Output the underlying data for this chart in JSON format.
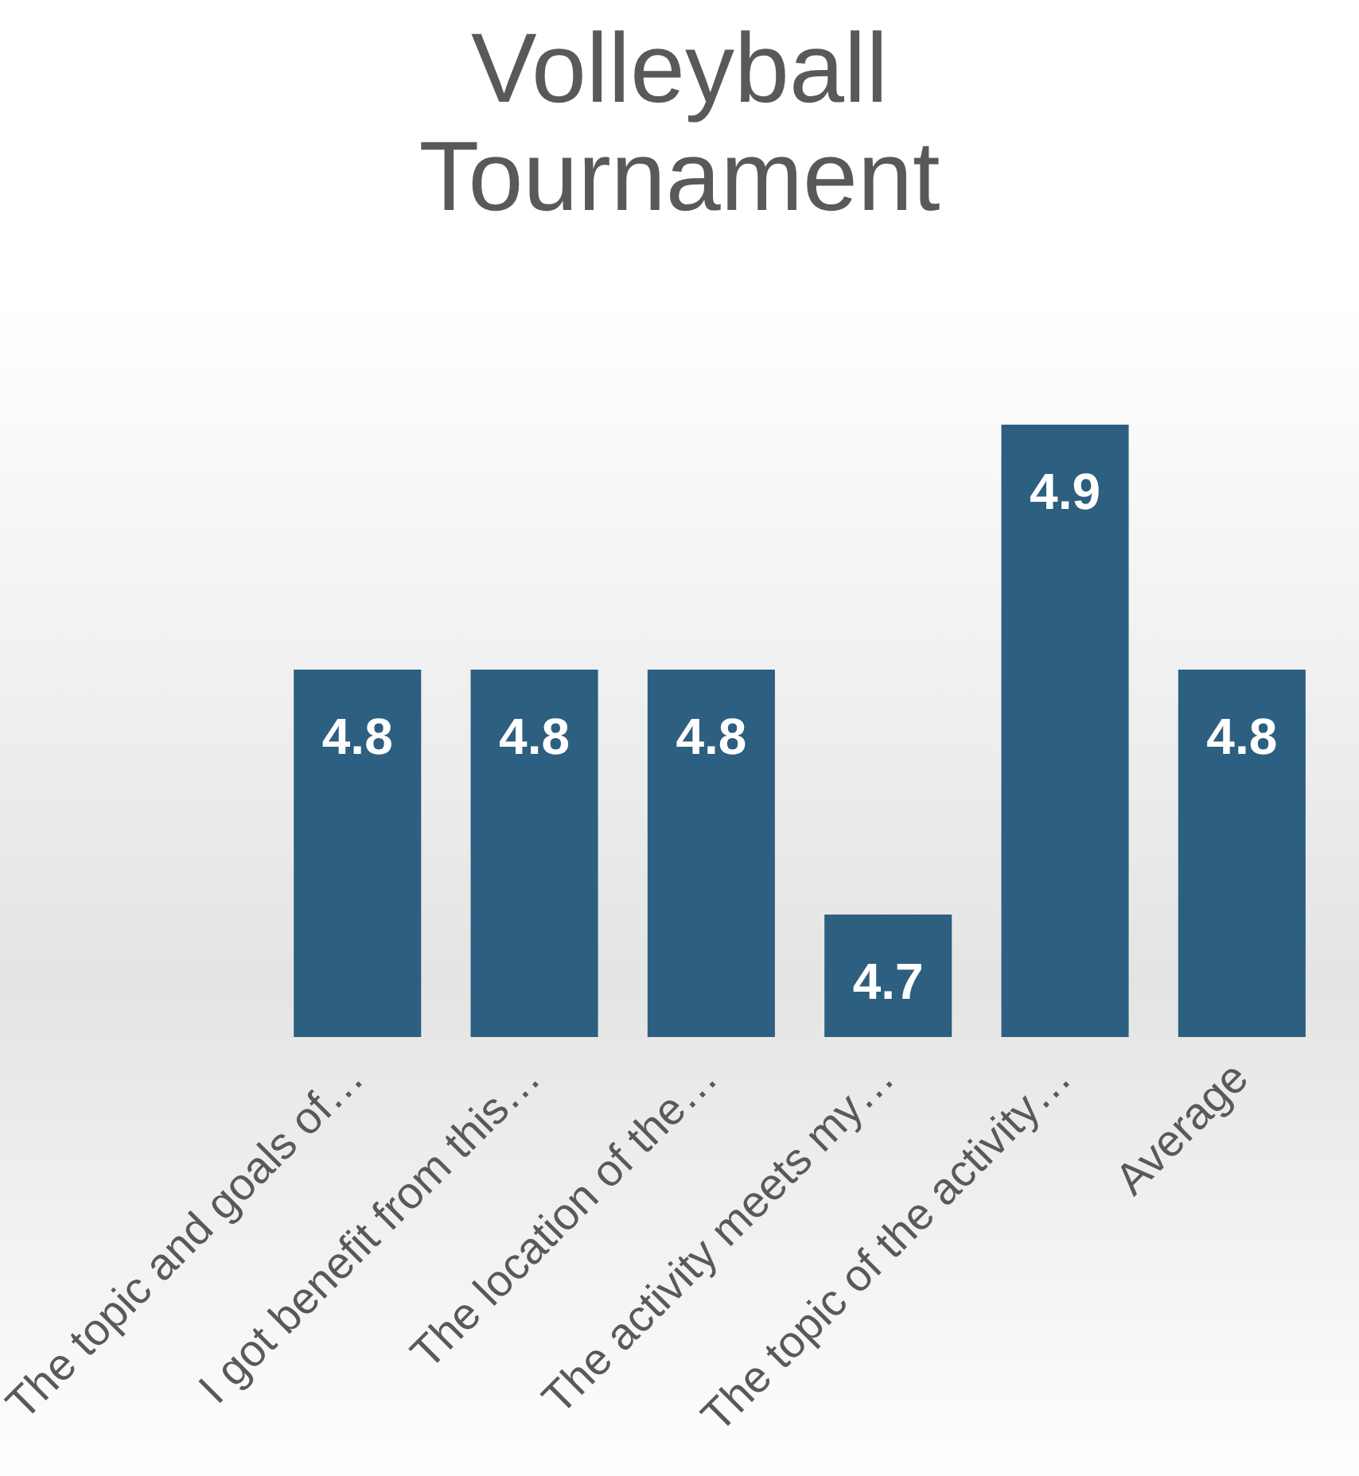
{
  "chart_data": {
    "type": "bar",
    "title": "Volleyball Tournament",
    "categories": [
      "The topic and goals of…",
      "I got benefit from this…",
      "The location of the…",
      "The activity meets my…",
      "The topic of the activity…",
      "Average"
    ],
    "values": [
      4.8,
      4.8,
      4.8,
      4.7,
      4.9,
      4.8
    ],
    "color": "#2c5f80",
    "tick_labels": "x",
    "grid": false,
    "legend": false,
    "data_labels": true
  }
}
